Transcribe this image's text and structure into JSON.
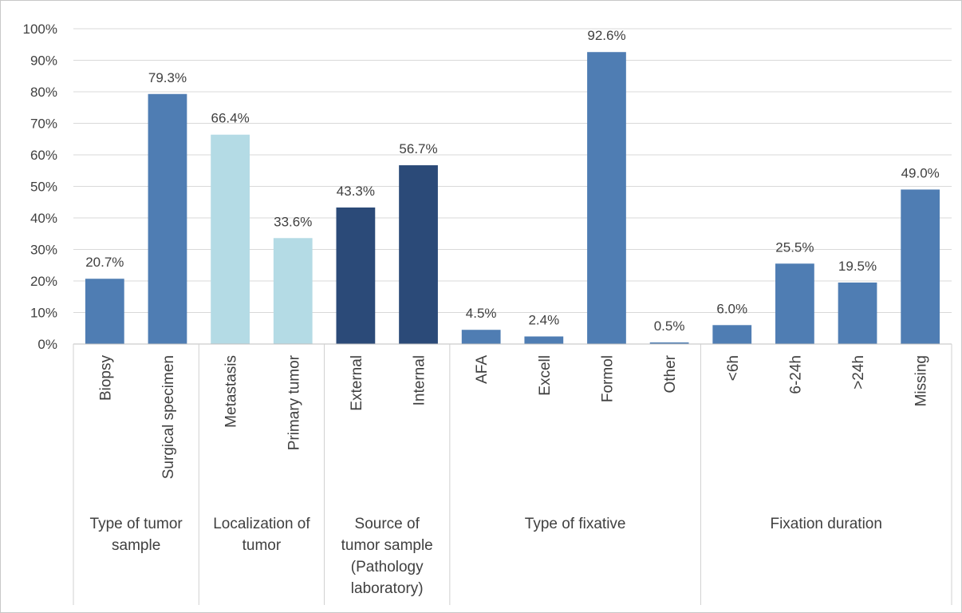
{
  "chart_data": {
    "type": "bar",
    "ylim": [
      0,
      100
    ],
    "yticks": [
      "0%",
      "10%",
      "20%",
      "30%",
      "40%",
      "50%",
      "60%",
      "70%",
      "80%",
      "90%",
      "100%"
    ],
    "grid": true,
    "categories": [
      "Biopsy",
      "Surgical specimen",
      "Metastasis",
      "Primary tumor",
      "External",
      "Internal",
      "AFA",
      "Excell",
      "Formol",
      "Other",
      "<6h",
      "6-24h",
      ">24h",
      "Missing"
    ],
    "values": [
      20.7,
      79.3,
      66.4,
      33.6,
      43.3,
      56.7,
      4.5,
      2.4,
      92.6,
      0.5,
      6.0,
      25.5,
      19.5,
      49.0
    ],
    "data_labels": [
      "20.7%",
      "79.3%",
      "66.4%",
      "33.6%",
      "43.3%",
      "56.7%",
      "4.5%",
      "2.4%",
      "92.6%",
      "0.5%",
      "6.0%",
      "25.5%",
      "19.5%",
      "49.0%"
    ],
    "groups": [
      {
        "label_lines": [
          "Type of tumor",
          "sample"
        ],
        "categories": [
          "Biopsy",
          "Surgical specimen"
        ],
        "color": "#4f7db3"
      },
      {
        "label_lines": [
          "Localization of",
          "tumor"
        ],
        "categories": [
          "Metastasis",
          "Primary tumor"
        ],
        "color": "#b4dbe5"
      },
      {
        "label_lines": [
          "Source of",
          "tumor sample",
          "(Pathology",
          "laboratory)"
        ],
        "categories": [
          "External",
          "Internal"
        ],
        "color": "#2b4a78"
      },
      {
        "label_lines": [
          "Type of fixative"
        ],
        "categories": [
          "AFA",
          "Excell",
          "Formol",
          "Other"
        ],
        "color": "#4f7db3"
      },
      {
        "label_lines": [
          "Fixation duration"
        ],
        "categories": [
          "<6h",
          "6-24h",
          ">24h",
          "Missing"
        ],
        "color": "#4f7db3"
      }
    ]
  }
}
